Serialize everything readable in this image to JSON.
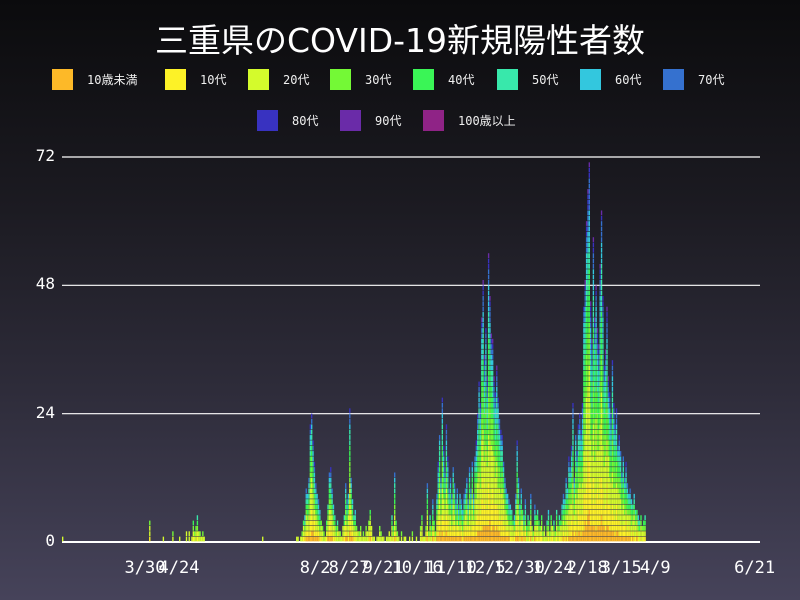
{
  "title": "三重県のCOVID-19新規陽性者数",
  "legend": [
    {
      "label": "10歳未満",
      "color": "#fdb928"
    },
    {
      "label": "10代",
      "color": "#fdf227"
    },
    {
      "label": "20代",
      "color": "#d4fb2c"
    },
    {
      "label": "30代",
      "color": "#74f936"
    },
    {
      "label": "40代",
      "color": "#3af556"
    },
    {
      "label": "50代",
      "color": "#38e8ab"
    },
    {
      "label": "60代",
      "color": "#33c7de"
    },
    {
      "label": "70代",
      "color": "#3571cf"
    },
    {
      "label": "80代",
      "color": "#3832c0"
    },
    {
      "label": "90代",
      "color": "#6a2ba8"
    },
    {
      "label": "100歳以上",
      "color": "#8f2386"
    }
  ],
  "chart_data": {
    "type": "bar",
    "stacked": true,
    "title": "三重県のCOVID-19新規陽性者数",
    "xlabel": "",
    "ylabel": "",
    "ylim": [
      0,
      72
    ],
    "yticks": [
      0,
      24,
      48,
      72
    ],
    "grid": true,
    "legend_position": "top",
    "x_start": "2020-01-29",
    "x_end": "2021-06-21",
    "xticks": [
      "3/30",
      "4/24",
      "8/2",
      "8/27",
      "9/21",
      "10/16",
      "11/10",
      "12/5",
      "12/30",
      "1/24",
      "2/18",
      "3/15",
      "4/9",
      "6/21"
    ],
    "xtick_dates": [
      "2020-03-30",
      "2020-04-24",
      "2020-08-02",
      "2020-08-27",
      "2020-09-21",
      "2020-10-16",
      "2020-11-10",
      "2020-12-05",
      "2020-12-30",
      "2021-01-24",
      "2021-02-18",
      "2021-03-15",
      "2021-04-09",
      "2021-06-21"
    ],
    "series_names": [
      "10歳未満",
      "10代",
      "20代",
      "30代",
      "40代",
      "50代",
      "60代",
      "70代",
      "80代",
      "90代",
      "100歳以上"
    ],
    "age_share": [
      0.07,
      0.14,
      0.22,
      0.14,
      0.13,
      0.11,
      0.08,
      0.06,
      0.03,
      0.015,
      0.005
    ],
    "key_points": [
      {
        "date": "2020-08-04",
        "total": 24
      },
      {
        "date": "2020-08-17",
        "total": 14
      },
      {
        "date": "2020-08-29",
        "total": 25
      },
      {
        "date": "2020-11-18",
        "total": 28
      },
      {
        "date": "2021-01-13",
        "total": 49
      },
      {
        "date": "2021-01-17",
        "total": 54
      },
      {
        "date": "2021-04-25",
        "total": 71
      },
      {
        "date": "2021-05-08",
        "total": 62
      },
      {
        "date": "2021-06-21",
        "total": 5
      }
    ],
    "totals": [
      1,
      0,
      0,
      0,
      0,
      0,
      0,
      0,
      0,
      0,
      0,
      0,
      0,
      0,
      0,
      0,
      0,
      0,
      0,
      0,
      0,
      0,
      0,
      0,
      0,
      0,
      0,
      0,
      0,
      0,
      0,
      0,
      0,
      0,
      0,
      0,
      0,
      0,
      0,
      0,
      0,
      0,
      0,
      0,
      0,
      0,
      0,
      0,
      0,
      0,
      0,
      0,
      0,
      0,
      0,
      0,
      0,
      0,
      0,
      0,
      0,
      0,
      0,
      0,
      4,
      0,
      0,
      0,
      0,
      0,
      0,
      0,
      0,
      0,
      1,
      0,
      0,
      0,
      0,
      0,
      0,
      2,
      0,
      0,
      0,
      0,
      1,
      0,
      0,
      0,
      0,
      2,
      0,
      2,
      0,
      1,
      4,
      2,
      3,
      5,
      2,
      2,
      1,
      2,
      1,
      0,
      0,
      0,
      0,
      0,
      0,
      0,
      0,
      0,
      0,
      0,
      0,
      0,
      0,
      0,
      0,
      0,
      0,
      0,
      0,
      0,
      0,
      0,
      0,
      0,
      0,
      0,
      0,
      0,
      0,
      0,
      0,
      0,
      0,
      0,
      0,
      0,
      0,
      0,
      0,
      0,
      0,
      1,
      0,
      0,
      0,
      0,
      0,
      0,
      0,
      0,
      0,
      0,
      0,
      0,
      0,
      0,
      0,
      0,
      0,
      0,
      0,
      0,
      0,
      0,
      0,
      0,
      1,
      1,
      0,
      1,
      2,
      4,
      5,
      10,
      9,
      12,
      22,
      24,
      19,
      15,
      11,
      9,
      8,
      6,
      4,
      3,
      2,
      1,
      4,
      7,
      13,
      14,
      10,
      7,
      5,
      3,
      4,
      2,
      2,
      1,
      3,
      5,
      11,
      8,
      9,
      25,
      12,
      8,
      5,
      6,
      3,
      2,
      2,
      3,
      1,
      2,
      1,
      3,
      2,
      4,
      6,
      3,
      1,
      1,
      0,
      1,
      1,
      3,
      2,
      1,
      1,
      0,
      1,
      1,
      2,
      1,
      5,
      3,
      13,
      4,
      2,
      1,
      0,
      2,
      0,
      1,
      1,
      0,
      0,
      1,
      0,
      2,
      0,
      0,
      1,
      0,
      0,
      3,
      5,
      1,
      1,
      3,
      11,
      2,
      5,
      3,
      8,
      4,
      2,
      9,
      15,
      20,
      12,
      27,
      18,
      14,
      22,
      16,
      10,
      12,
      9,
      14,
      11,
      8,
      10,
      7,
      9,
      8,
      6,
      9,
      10,
      12,
      8,
      14,
      10,
      15,
      9,
      16,
      19,
      24,
      30,
      26,
      42,
      49,
      35,
      40,
      31,
      54,
      46,
      39,
      38,
      31,
      28,
      33,
      27,
      23,
      21,
      20,
      15,
      12,
      10,
      9,
      8,
      7,
      6,
      4,
      5,
      9,
      19,
      12,
      7,
      10,
      6,
      5,
      8,
      3,
      5,
      4,
      9,
      3,
      2,
      7,
      5,
      6,
      4,
      3,
      5,
      2,
      3,
      1,
      4,
      6,
      2,
      5,
      3,
      4,
      2,
      6,
      3,
      5,
      4,
      7,
      9,
      8,
      12,
      10,
      16,
      14,
      18,
      26,
      12,
      20,
      17,
      22,
      24,
      21,
      26,
      44,
      49,
      60,
      66,
      71,
      45,
      38,
      57,
      42,
      48,
      40,
      37,
      52,
      62,
      46,
      33,
      36,
      44,
      31,
      28,
      24,
      34,
      26,
      22,
      25,
      18,
      20,
      17,
      13,
      16,
      12,
      15,
      11,
      9,
      10,
      8,
      7,
      9,
      6,
      6,
      5,
      4,
      5,
      3,
      4,
      5
    ]
  },
  "axis": {
    "y_labels": [
      "72",
      "48",
      "24",
      "0"
    ],
    "x_labels": [
      "3/30",
      "4/24",
      "8/2",
      "8/27",
      "9/21",
      "10/16",
      "11/10",
      "12/5",
      "12/30",
      "1/24",
      "2/18",
      "3/15",
      "4/9",
      "6/21"
    ]
  }
}
